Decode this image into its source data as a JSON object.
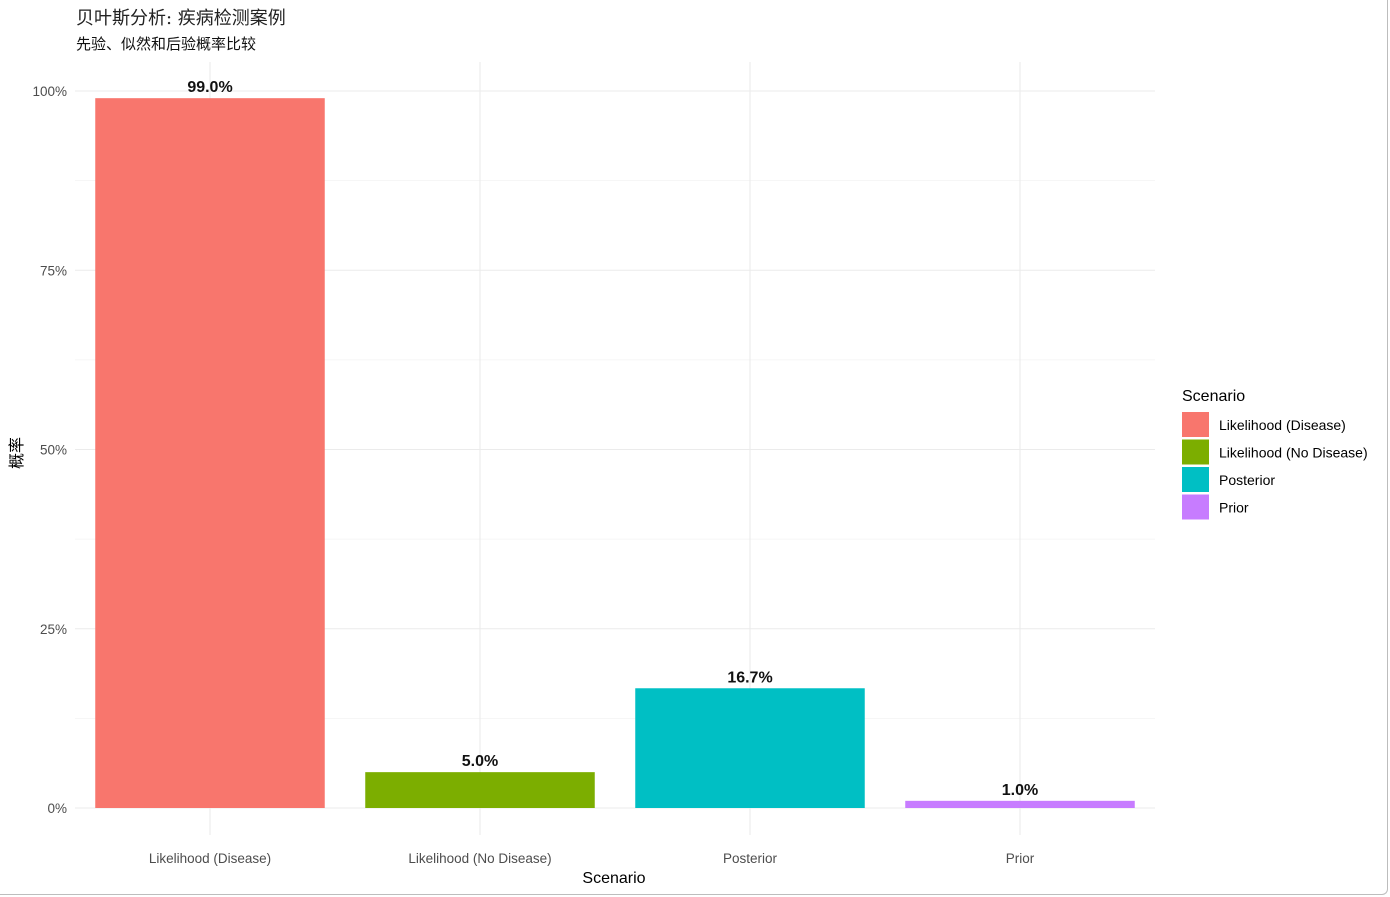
{
  "chart_data": {
    "type": "bar",
    "title": "贝叶斯分析: 疾病检测案例",
    "subtitle": "先验、似然和后验概率比较",
    "xlabel": "Scenario",
    "ylabel": "概率",
    "categories": [
      "Likelihood (Disease)",
      "Likelihood (No Disease)",
      "Posterior",
      "Prior"
    ],
    "values": [
      0.99,
      0.05,
      0.167,
      0.01
    ],
    "data_labels": [
      "99.0%",
      "5.0%",
      "16.7%",
      "1.0%"
    ],
    "colors": [
      "#F8766D",
      "#7CAE00",
      "#00BFC4",
      "#C77CFF"
    ],
    "ylim": [
      0,
      1
    ],
    "y_ticks": [
      0,
      0.25,
      0.5,
      0.75,
      1.0
    ],
    "y_tick_labels": [
      "0%",
      "25%",
      "50%",
      "75%",
      "100%"
    ],
    "grid": true,
    "legend": {
      "title": "Scenario",
      "position": "right",
      "items": [
        "Likelihood (Disease)",
        "Likelihood (No Disease)",
        "Posterior",
        "Prior"
      ]
    }
  }
}
